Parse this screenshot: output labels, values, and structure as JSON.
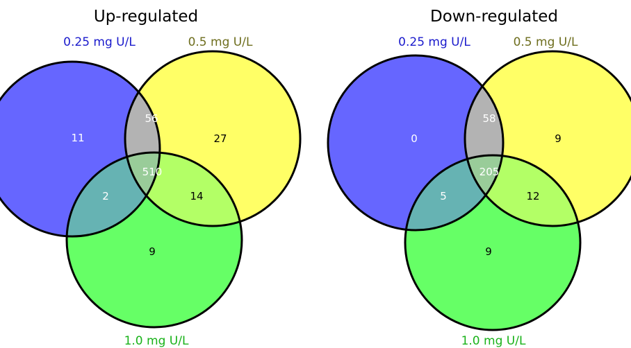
{
  "colors": {
    "set_a": "#6666ff",
    "set_b": "#ffff66",
    "set_c": "#66ff66",
    "outline": "#000000",
    "label_a": "#1a1acc",
    "label_b": "#6e6e1e",
    "label_c": "#19b219",
    "count_on_dark": "#ffffff",
    "count_on_light": "#000000"
  },
  "diagrams": [
    {
      "title": "Up-regulated",
      "sets": {
        "a": "0.25 mg U/L",
        "b": "0.5 mg U/L",
        "c": "1.0 mg U/L"
      },
      "counts": {
        "a_only": "11",
        "b_only": "27",
        "c_only": "9",
        "ab": "56",
        "ac": "2",
        "bc": "14",
        "abc": "510"
      }
    },
    {
      "title": "Down-regulated",
      "sets": {
        "a": "0.25 mg U/L",
        "b": "0.5 mg U/L",
        "c": "1.0 mg U/L"
      },
      "counts": {
        "a_only": "0",
        "b_only": "9",
        "c_only": "9",
        "ab": "58",
        "ac": "5",
        "bc": "12",
        "abc": "205"
      }
    }
  ]
}
